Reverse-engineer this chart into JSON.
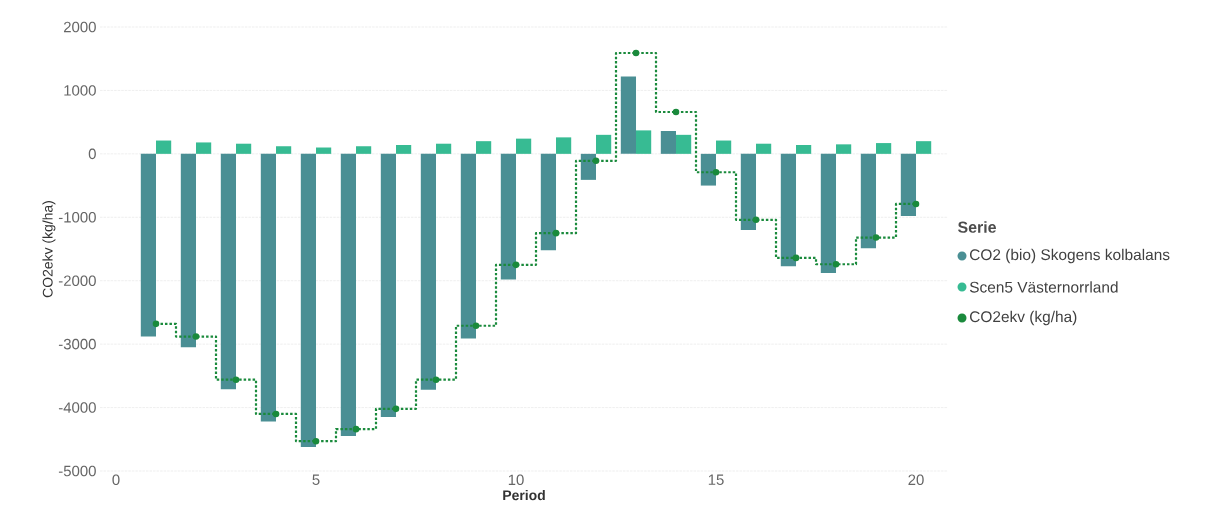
{
  "chart_data": {
    "type": "bar",
    "xlabel": "Period",
    "ylabel": "CO2ekv (kg/ha)",
    "legend_title": "Serie",
    "legend": "right",
    "grid": "y",
    "x": [
      1,
      2,
      3,
      4,
      5,
      6,
      7,
      8,
      9,
      10,
      11,
      12,
      13,
      14,
      15,
      16,
      17,
      18,
      19,
      20
    ],
    "xlim": [
      -0.4,
      20.8
    ],
    "xticks": [
      0,
      5,
      10,
      15,
      20
    ],
    "ylim": [
      -5000,
      2000
    ],
    "yticks": [
      -5000,
      -4000,
      -3000,
      -2000,
      -1000,
      0,
      1000,
      2000
    ],
    "series": [
      {
        "name": "CO2 (bio) Skogens kolbalans",
        "color": "#4a8f94",
        "values": [
          -2880,
          -3050,
          -3710,
          -4220,
          -4620,
          -4450,
          -4150,
          -3720,
          -2910,
          -1980,
          -1520,
          -410,
          1220,
          360,
          -500,
          -1200,
          -1770,
          -1880,
          -1490,
          -980
        ]
      },
      {
        "name": "Scen5 Västernorrland",
        "color": "#37bb93",
        "values": [
          210,
          180,
          160,
          120,
          100,
          120,
          140,
          160,
          200,
          240,
          260,
          300,
          370,
          300,
          210,
          160,
          140,
          150,
          170,
          200
        ]
      },
      {
        "name": "CO2ekv (kg/ha)",
        "type": "step",
        "color": "#1a8a3c",
        "marker": "circle",
        "line_style": "dotted",
        "values": [
          -2680,
          -2880,
          -3560,
          -4100,
          -4530,
          -4340,
          -4020,
          -3560,
          -2710,
          -1750,
          -1250,
          -110,
          1590,
          660,
          -290,
          -1040,
          -1640,
          -1740,
          -1320,
          -790
        ]
      }
    ]
  }
}
